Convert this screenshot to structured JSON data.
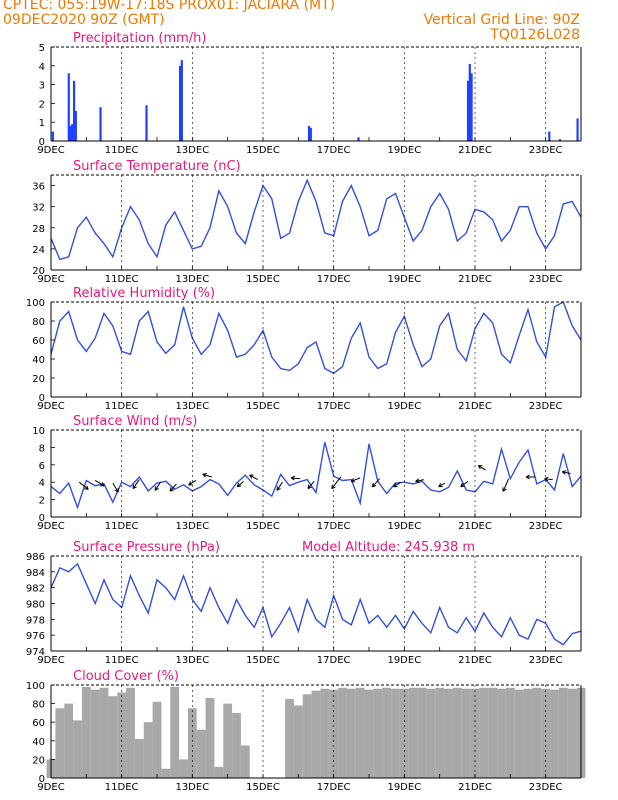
{
  "header": {
    "line1_left": "CPTEC:   055:19W-17:18S   PROX01: JACIARA (MT)",
    "line2_left": "09DEC2020 90Z (GMT)",
    "line2_right": "Vertical Grid Line: 90Z",
    "line3_right": "TQ0126L028"
  },
  "colors": {
    "header": "#f07800",
    "title": "#e8187a",
    "series": "#3050e0",
    "bar": "#2040ff",
    "cloud": "#a8a8a8",
    "arrow": "#000000"
  },
  "x_tick_labels": [
    "9DEC",
    "11DEC",
    "13DEC",
    "15DEC",
    "17DEC",
    "19DEC",
    "21DEC",
    "23DEC"
  ],
  "chart_data": [
    {
      "id": "precip",
      "type": "bar",
      "title": "Precipitation (mm/h)",
      "ylim": [
        0,
        5
      ],
      "yticks": [
        0,
        1,
        2,
        3,
        4,
        5
      ],
      "xlim_days": [
        0,
        15
      ],
      "bars": [
        {
          "x": 0.05,
          "y": 0.5
        },
        {
          "x": 0.5,
          "y": 3.6
        },
        {
          "x": 0.55,
          "y": 0.8
        },
        {
          "x": 0.6,
          "y": 0.9
        },
        {
          "x": 0.65,
          "y": 3.2
        },
        {
          "x": 0.7,
          "y": 1.6
        },
        {
          "x": 1.4,
          "y": 1.8
        },
        {
          "x": 2.7,
          "y": 1.9
        },
        {
          "x": 3.65,
          "y": 4.0
        },
        {
          "x": 3.7,
          "y": 4.3
        },
        {
          "x": 7.3,
          "y": 0.8
        },
        {
          "x": 7.35,
          "y": 0.7
        },
        {
          "x": 8.7,
          "y": 0.2
        },
        {
          "x": 11.8,
          "y": 3.2
        },
        {
          "x": 11.85,
          "y": 4.1
        },
        {
          "x": 11.9,
          "y": 3.6
        },
        {
          "x": 14.1,
          "y": 0.5
        },
        {
          "x": 14.4,
          "y": 0.1
        },
        {
          "x": 14.9,
          "y": 1.2
        }
      ]
    },
    {
      "id": "temp",
      "type": "line",
      "title": "Surface Temperature (nC)",
      "ylim": [
        20,
        38
      ],
      "yticks": [
        20,
        24,
        28,
        32,
        36
      ],
      "xlim_days": [
        0,
        15
      ],
      "x": [
        0,
        0.25,
        0.5,
        0.75,
        1,
        1.25,
        1.5,
        1.75,
        2,
        2.25,
        2.5,
        2.75,
        3,
        3.25,
        3.5,
        3.75,
        4,
        4.25,
        4.5,
        4.75,
        5,
        5.25,
        5.5,
        5.75,
        6,
        6.25,
        6.5,
        6.75,
        7,
        7.25,
        7.5,
        7.75,
        8,
        8.25,
        8.5,
        8.75,
        9,
        9.25,
        9.5,
        9.75,
        10,
        10.25,
        10.5,
        10.75,
        11,
        11.25,
        11.5,
        11.75,
        12,
        12.25,
        12.5,
        12.75,
        13,
        13.25,
        13.5,
        13.75,
        14,
        14.25,
        14.5,
        14.75,
        15
      ],
      "y": [
        26,
        22,
        22.5,
        28,
        30,
        27,
        25,
        22.5,
        28,
        32,
        29.5,
        25,
        22.5,
        28.5,
        31,
        27.5,
        24,
        24.5,
        28,
        35,
        32,
        27,
        25,
        31,
        36,
        33.5,
        26,
        27,
        33,
        37,
        33,
        27,
        26.5,
        33,
        36,
        32,
        26.5,
        27.5,
        33.5,
        34.5,
        30,
        25.5,
        27.5,
        32,
        34.5,
        31.5,
        25.5,
        27,
        31.5,
        31,
        29.5,
        25.5,
        27.5,
        32,
        32,
        27,
        24,
        26.5,
        32.5,
        33,
        30
      ]
    },
    {
      "id": "rh",
      "type": "line",
      "title": "Relative Humidity (%)",
      "ylim": [
        0,
        100
      ],
      "yticks": [
        0,
        20,
        40,
        60,
        80,
        100
      ],
      "xlim_days": [
        0,
        15
      ],
      "x": [
        0,
        0.25,
        0.5,
        0.75,
        1,
        1.25,
        1.5,
        1.75,
        2,
        2.25,
        2.5,
        2.75,
        3,
        3.25,
        3.5,
        3.75,
        4,
        4.25,
        4.5,
        4.75,
        5,
        5.25,
        5.5,
        5.75,
        6,
        6.25,
        6.5,
        6.75,
        7,
        7.25,
        7.5,
        7.75,
        8,
        8.25,
        8.5,
        8.75,
        9,
        9.25,
        9.5,
        9.75,
        10,
        10.25,
        10.5,
        10.75,
        11,
        11.25,
        11.5,
        11.75,
        12,
        12.25,
        12.5,
        12.75,
        13,
        13.25,
        13.5,
        13.75,
        14,
        14.25,
        14.5,
        14.75,
        15
      ],
      "y": [
        45,
        80,
        90,
        60,
        48,
        62,
        88,
        75,
        48,
        45,
        80,
        90,
        58,
        46,
        55,
        95,
        62,
        45,
        55,
        88,
        70,
        42,
        45,
        55,
        70,
        42,
        30,
        28,
        35,
        52,
        58,
        30,
        25,
        32,
        62,
        78,
        42,
        30,
        35,
        68,
        85,
        55,
        32,
        40,
        75,
        88,
        50,
        38,
        72,
        88,
        78,
        45,
        36,
        65,
        92,
        58,
        42,
        95,
        100,
        75,
        60
      ]
    },
    {
      "id": "wind",
      "type": "line",
      "title": "Surface Wind (m/s)",
      "ylim": [
        0,
        10
      ],
      "yticks": [
        0,
        2,
        4,
        6,
        8,
        10
      ],
      "xlim_days": [
        0,
        15
      ],
      "x": [
        0,
        0.25,
        0.5,
        0.75,
        1,
        1.25,
        1.5,
        1.75,
        2,
        2.25,
        2.5,
        2.75,
        3,
        3.25,
        3.5,
        3.75,
        4,
        4.25,
        4.5,
        4.75,
        5,
        5.25,
        5.5,
        5.75,
        6,
        6.25,
        6.5,
        6.75,
        7,
        7.25,
        7.5,
        7.75,
        8,
        8.25,
        8.5,
        8.75,
        9,
        9.25,
        9.5,
        9.75,
        10,
        10.25,
        10.5,
        10.75,
        11,
        11.25,
        11.5,
        11.75,
        12,
        12.25,
        12.5,
        12.75,
        13,
        13.25,
        13.5,
        13.75,
        14,
        14.25,
        14.5,
        14.75,
        15
      ],
      "y": [
        3.5,
        2.7,
        3.9,
        1.1,
        4.2,
        3.6,
        3.8,
        1.7,
        4.0,
        3.5,
        4.6,
        3.0,
        3.9,
        4.1,
        3.2,
        3.7,
        3.0,
        3.5,
        4.3,
        3.8,
        2.5,
        3.9,
        4.8,
        3.7,
        3.1,
        2.4,
        4.9,
        3.6,
        4.0,
        4.3,
        2.8,
        8.6,
        4.7,
        4.2,
        4.3,
        1.6,
        8.4,
        4.1,
        2.7,
        3.9,
        4.0,
        3.8,
        4.1,
        3.1,
        2.9,
        3.4,
        5.3,
        3.1,
        2.9,
        4.1,
        3.8,
        7.8,
        4.4,
        6.3,
        7.7,
        3.8,
        4.3,
        3.1,
        7.3,
        3.5,
        4.7
      ],
      "arrows": [
        {
          "x": 0.8,
          "y": 4.0,
          "u": 1,
          "v": -0.8
        },
        {
          "x": 1.25,
          "y": 4.2,
          "u": 1,
          "v": -0.6
        },
        {
          "x": 1.75,
          "y": 3.9,
          "u": 0.6,
          "v": -1
        },
        {
          "x": 2.5,
          "y": 4.3,
          "u": -0.7,
          "v": -1
        },
        {
          "x": 3.1,
          "y": 4.0,
          "u": -0.6,
          "v": -0.9
        },
        {
          "x": 3.55,
          "y": 3.8,
          "u": -0.7,
          "v": -0.8
        },
        {
          "x": 4.1,
          "y": 4.2,
          "u": -0.8,
          "v": -0.5
        },
        {
          "x": 4.55,
          "y": 4.6,
          "u": -1,
          "v": 0.3
        },
        {
          "x": 5.45,
          "y": 4.1,
          "u": -0.7,
          "v": -0.6
        },
        {
          "x": 5.85,
          "y": 4.3,
          "u": -0.9,
          "v": 0.5
        },
        {
          "x": 6.55,
          "y": 4.0,
          "u": -0.6,
          "v": -0.9
        },
        {
          "x": 7.05,
          "y": 4.4,
          "u": -1,
          "v": 0.1
        },
        {
          "x": 7.45,
          "y": 4.1,
          "u": -0.7,
          "v": -0.8
        },
        {
          "x": 8.2,
          "y": 4.6,
          "u": -1,
          "v": -1.3
        },
        {
          "x": 8.75,
          "y": 4.5,
          "u": -1,
          "v": -0.4
        },
        {
          "x": 9.3,
          "y": 4.4,
          "u": -0.8,
          "v": -0.9
        },
        {
          "x": 9.9,
          "y": 4.0,
          "u": -0.8,
          "v": -0.5
        },
        {
          "x": 10.55,
          "y": 4.3,
          "u": -0.9,
          "v": -0.2
        },
        {
          "x": 11.15,
          "y": 3.9,
          "u": -0.7,
          "v": -0.4
        },
        {
          "x": 11.8,
          "y": 4.1,
          "u": -0.8,
          "v": -0.6
        },
        {
          "x": 12.3,
          "y": 5.4,
          "u": -0.8,
          "v": 0.5
        },
        {
          "x": 12.95,
          "y": 4.4,
          "u": -0.6,
          "v": -1.4
        },
        {
          "x": 13.7,
          "y": 4.6,
          "u": -1,
          "v": 0
        },
        {
          "x": 14.2,
          "y": 4.3,
          "u": -0.9,
          "v": 0.1
        },
        {
          "x": 14.7,
          "y": 5.0,
          "u": -0.9,
          "v": 0.2
        }
      ]
    },
    {
      "id": "pressure",
      "type": "line",
      "title": "Surface Pressure (hPa)",
      "extra_label": "Model Altitude: 245.938 m",
      "ylim": [
        974,
        986
      ],
      "yticks": [
        974,
        976,
        978,
        980,
        982,
        984,
        986
      ],
      "xlim_days": [
        0,
        15
      ],
      "x": [
        0,
        0.25,
        0.5,
        0.75,
        1,
        1.25,
        1.5,
        1.75,
        2,
        2.25,
        2.5,
        2.75,
        3,
        3.25,
        3.5,
        3.75,
        4,
        4.25,
        4.5,
        4.75,
        5,
        5.25,
        5.5,
        5.75,
        6,
        6.25,
        6.5,
        6.75,
        7,
        7.25,
        7.5,
        7.75,
        8,
        8.25,
        8.5,
        8.75,
        9,
        9.25,
        9.5,
        9.75,
        10,
        10.25,
        10.5,
        10.75,
        11,
        11.25,
        11.5,
        11.75,
        12,
        12.25,
        12.5,
        12.75,
        13,
        13.25,
        13.5,
        13.75,
        14,
        14.25,
        14.5,
        14.75,
        15
      ],
      "y": [
        982,
        984.5,
        984,
        985,
        982.5,
        980,
        983,
        980.5,
        979.5,
        983.5,
        981,
        978.8,
        983,
        982,
        980.5,
        983.5,
        980.5,
        979,
        982,
        979.5,
        977.5,
        980.5,
        978.5,
        977,
        979.5,
        975.8,
        977.5,
        979.5,
        976.5,
        980.5,
        978,
        977,
        981,
        978,
        977.3,
        980.5,
        977.5,
        978.5,
        977,
        978.5,
        976.8,
        979,
        977.5,
        976.3,
        979.5,
        977,
        976.3,
        978.2,
        976.5,
        978.8,
        977,
        975.8,
        978.2,
        976,
        975.5,
        978,
        977.5,
        975.5,
        974.8,
        976.2,
        976.5
      ]
    },
    {
      "id": "cloud",
      "type": "area",
      "title": "Cloud Cover (%)",
      "ylim": [
        0,
        100
      ],
      "yticks": [
        0,
        20,
        40,
        60,
        80,
        100
      ],
      "xlim_days": [
        0,
        15
      ],
      "x": [
        0,
        0.25,
        0.5,
        0.75,
        1,
        1.25,
        1.5,
        1.75,
        2,
        2.25,
        2.5,
        2.75,
        3,
        3.25,
        3.5,
        3.75,
        4,
        4.25,
        4.5,
        4.75,
        5,
        5.25,
        5.5,
        5.75,
        6,
        6.25,
        6.5,
        6.75,
        7,
        7.25,
        7.5,
        7.75,
        8,
        8.25,
        8.5,
        8.75,
        9,
        9.25,
        9.5,
        9.75,
        10,
        10.25,
        10.5,
        10.75,
        11,
        11.25,
        11.5,
        11.75,
        12,
        12.25,
        12.5,
        12.75,
        13,
        13.25,
        13.5,
        13.75,
        14,
        14.25,
        14.5,
        14.75,
        15
      ],
      "y": [
        20,
        75,
        80,
        62,
        98,
        95,
        97,
        88,
        92,
        97,
        42,
        60,
        82,
        10,
        98,
        20,
        75,
        52,
        86,
        12,
        80,
        70,
        35,
        0,
        0,
        0,
        0,
        85,
        78,
        90,
        94,
        96,
        95,
        97,
        96,
        97,
        95,
        96,
        97,
        96,
        96,
        97,
        97,
        96,
        97,
        96,
        97,
        96,
        96,
        97,
        97,
        96,
        97,
        95,
        96,
        97,
        96,
        95,
        97,
        96,
        97
      ]
    }
  ]
}
